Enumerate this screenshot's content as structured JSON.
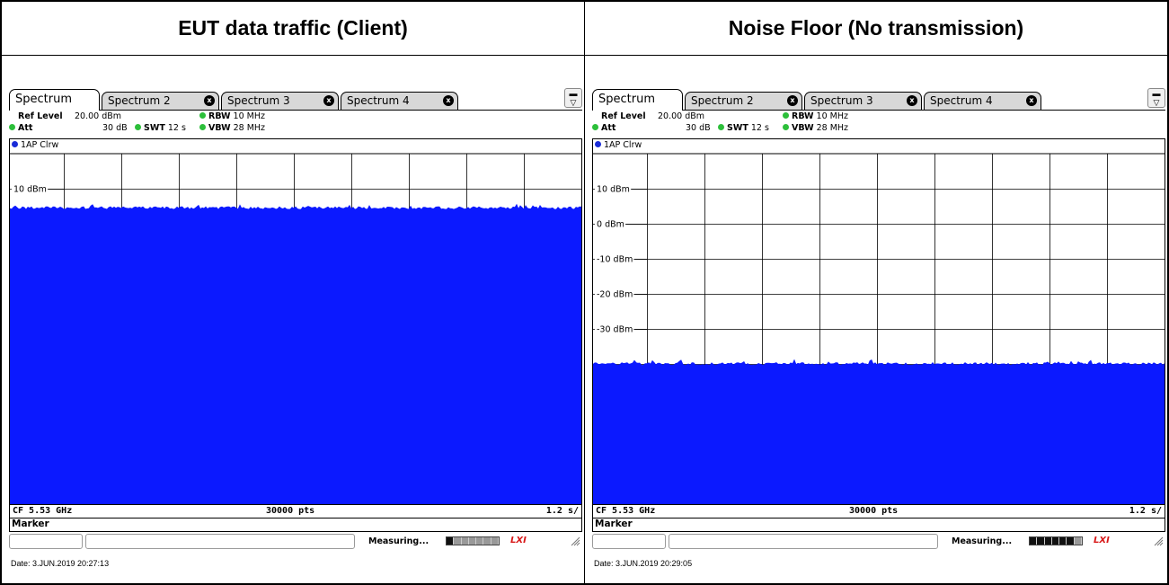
{
  "colors": {
    "trace": "#0b19ff",
    "grid": "#000000",
    "marker_dot": "#1a2cd8",
    "param_dot": "#2cbf3a",
    "lxi": "#d81818"
  },
  "panels": [
    {
      "header": "EUT data traffic (Client)",
      "tabs": [
        "Spectrum",
        "Spectrum 2",
        "Spectrum 3",
        "Spectrum 4"
      ],
      "close_glyph": "x",
      "menu_icon": "menu-icon",
      "params": {
        "ref_level_label": "Ref Level",
        "ref_level_value": "20.00 dBm",
        "att_label": "Att",
        "att_value": "30 dB",
        "swt_label": "SWT",
        "swt_value": "12 s",
        "rbw_label": "RBW",
        "rbw_value": "10 MHz",
        "vbw_label": "VBW",
        "vbw_value": "28 MHz"
      },
      "trace_label": "1AP Clrw",
      "y_labels": [
        "10 dBm"
      ],
      "footer": {
        "cf": "CF 5.53 GHz",
        "pts": "30000 pts",
        "time": "1.2 s/"
      },
      "marker": "Marker",
      "status": "Measuring...",
      "lxi": "LXI",
      "progress_filled": 1,
      "date": "Date: 3.JUN.2019  20:27:13"
    },
    {
      "header": "Noise Floor (No transmission)",
      "tabs": [
        "Spectrum",
        "Spectrum 2",
        "Spectrum 3",
        "Spectrum 4"
      ],
      "close_glyph": "x",
      "menu_icon": "menu-icon",
      "params": {
        "ref_level_label": "Ref Level",
        "ref_level_value": "20.00 dBm",
        "att_label": "Att",
        "att_value": "30 dB",
        "swt_label": "SWT",
        "swt_value": "12 s",
        "rbw_label": "RBW",
        "rbw_value": "10 MHz",
        "vbw_label": "VBW",
        "vbw_value": "28 MHz"
      },
      "trace_label": "1AP Clrw",
      "y_labels": [
        "10 dBm",
        "0 dBm",
        "-10 dBm",
        "-20 dBm",
        "-30 dBm"
      ],
      "footer": {
        "cf": "CF 5.53 GHz",
        "pts": "30000 pts",
        "time": "1.2 s/"
      },
      "marker": "Marker",
      "status": "Measuring...",
      "lxi": "LXI",
      "progress_filled": 6,
      "date": "Date: 3.JUN.2019  20:29:05"
    }
  ],
  "chart_data": [
    {
      "type": "area",
      "title": "",
      "y_ticks": [
        20,
        10,
        0,
        -10,
        -20,
        -30,
        -40,
        -50,
        -60,
        -70,
        -80
      ],
      "ylim": [
        -80,
        20
      ],
      "level_dbm": 4.5,
      "x_divisions": 10,
      "grid": true
    },
    {
      "type": "area",
      "title": "",
      "y_ticks": [
        20,
        10,
        0,
        -10,
        -20,
        -30,
        -40,
        -50,
        -60,
        -70,
        -80
      ],
      "ylim": [
        -80,
        20
      ],
      "level_dbm": -40,
      "x_divisions": 10,
      "grid": true
    }
  ]
}
